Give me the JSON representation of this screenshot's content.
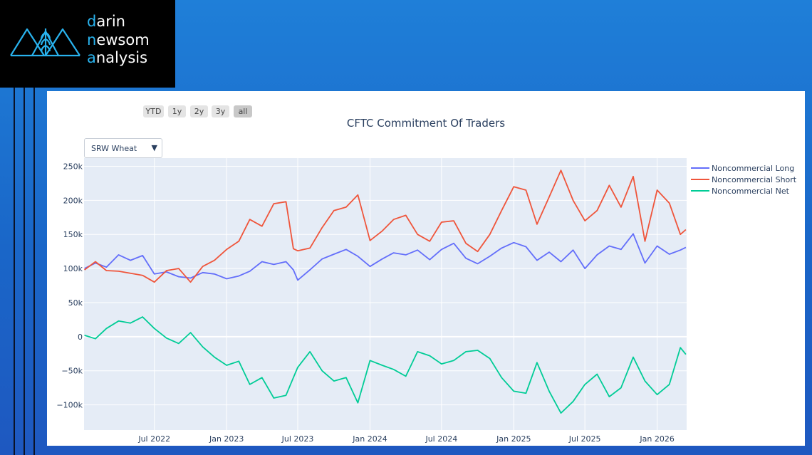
{
  "logo": {
    "lines": [
      {
        "first": "d",
        "rest": "arin"
      },
      {
        "first": "n",
        "rest": "ewsom"
      },
      {
        "first": "a",
        "rest": "nalysis"
      }
    ],
    "brand_color": "#29b3ee"
  },
  "range_selector": [
    "YTD",
    "1y",
    "2y",
    "3y",
    "all"
  ],
  "range_selector_active": "all",
  "dropdown": {
    "selected": "SRW Wheat",
    "caret": "▼"
  },
  "chart_data": {
    "type": "line",
    "title": "CFTC Commitment Of Traders",
    "x_range": [
      "2022-01-03",
      "2026-03-17"
    ],
    "ylim": [
      -137000,
      262000
    ],
    "y_ticks": [
      {
        "value": 250000,
        "label": "250k"
      },
      {
        "value": 200000,
        "label": "200k"
      },
      {
        "value": 150000,
        "label": "150k"
      },
      {
        "value": 100000,
        "label": "100k"
      },
      {
        "value": 50000,
        "label": "50k"
      },
      {
        "value": 0,
        "label": "0"
      },
      {
        "value": -50000,
        "label": "−50k"
      },
      {
        "value": -100000,
        "label": "−100k"
      }
    ],
    "x_ticks": [
      {
        "date": "2022-07-01",
        "label": "Jul 2022"
      },
      {
        "date": "2023-01-01",
        "label": "Jan 2023"
      },
      {
        "date": "2023-07-01",
        "label": "Jul 2023"
      },
      {
        "date": "2024-01-01",
        "label": "Jan 2024"
      },
      {
        "date": "2024-07-01",
        "label": "Jul 2024"
      },
      {
        "date": "2025-01-01",
        "label": "Jan 2025"
      },
      {
        "date": "2025-07-01",
        "label": "Jul 2025"
      },
      {
        "date": "2026-01-01",
        "label": "Jan 2026"
      }
    ],
    "grid": true,
    "plot_background": "#e5ecf6",
    "legend_position": "right",
    "series": [
      {
        "name": "Noncommercial Long",
        "color": "#636efa",
        "points": [
          [
            "2022-01-04",
            100000
          ],
          [
            "2022-02-01",
            108000
          ],
          [
            "2022-03-01",
            102000
          ],
          [
            "2022-04-01",
            120000
          ],
          [
            "2022-05-01",
            112000
          ],
          [
            "2022-06-01",
            119000
          ],
          [
            "2022-07-01",
            92000
          ],
          [
            "2022-08-01",
            95000
          ],
          [
            "2022-09-01",
            88000
          ],
          [
            "2022-10-01",
            86000
          ],
          [
            "2022-11-01",
            94000
          ],
          [
            "2022-12-01",
            92000
          ],
          [
            "2023-01-01",
            85000
          ],
          [
            "2023-02-01",
            89000
          ],
          [
            "2023-03-01",
            96000
          ],
          [
            "2023-04-01",
            110000
          ],
          [
            "2023-05-01",
            106000
          ],
          [
            "2023-06-01",
            110000
          ],
          [
            "2023-06-20",
            98000
          ],
          [
            "2023-07-01",
            83000
          ],
          [
            "2023-08-01",
            98000
          ],
          [
            "2023-09-01",
            114000
          ],
          [
            "2023-10-01",
            121000
          ],
          [
            "2023-11-01",
            128000
          ],
          [
            "2023-12-01",
            118000
          ],
          [
            "2024-01-01",
            103000
          ],
          [
            "2024-02-01",
            114000
          ],
          [
            "2024-03-01",
            123000
          ],
          [
            "2024-04-01",
            120000
          ],
          [
            "2024-05-01",
            127000
          ],
          [
            "2024-06-01",
            113000
          ],
          [
            "2024-07-01",
            128000
          ],
          [
            "2024-08-01",
            137000
          ],
          [
            "2024-09-01",
            115000
          ],
          [
            "2024-10-01",
            107000
          ],
          [
            "2024-11-01",
            118000
          ],
          [
            "2024-12-01",
            130000
          ],
          [
            "2025-01-01",
            138000
          ],
          [
            "2025-02-01",
            132000
          ],
          [
            "2025-03-01",
            112000
          ],
          [
            "2025-04-01",
            124000
          ],
          [
            "2025-05-01",
            110000
          ],
          [
            "2025-06-01",
            127000
          ],
          [
            "2025-07-01",
            100000
          ],
          [
            "2025-08-01",
            120000
          ],
          [
            "2025-09-01",
            133000
          ],
          [
            "2025-10-01",
            128000
          ],
          [
            "2025-11-01",
            151000
          ],
          [
            "2025-12-01",
            108000
          ],
          [
            "2026-01-01",
            133000
          ],
          [
            "2026-02-01",
            121000
          ],
          [
            "2026-03-01",
            127000
          ],
          [
            "2026-03-15",
            131000
          ]
        ]
      },
      {
        "name": "Noncommercial Short",
        "color": "#ef553b",
        "points": [
          [
            "2022-01-04",
            98000
          ],
          [
            "2022-02-01",
            110000
          ],
          [
            "2022-03-01",
            97000
          ],
          [
            "2022-04-01",
            96000
          ],
          [
            "2022-05-01",
            93000
          ],
          [
            "2022-06-01",
            90000
          ],
          [
            "2022-07-01",
            80000
          ],
          [
            "2022-08-01",
            97000
          ],
          [
            "2022-09-01",
            100000
          ],
          [
            "2022-10-01",
            80000
          ],
          [
            "2022-11-01",
            103000
          ],
          [
            "2022-12-01",
            112000
          ],
          [
            "2023-01-01",
            128000
          ],
          [
            "2023-02-01",
            140000
          ],
          [
            "2023-03-01",
            172000
          ],
          [
            "2023-04-01",
            162000
          ],
          [
            "2023-05-01",
            195000
          ],
          [
            "2023-06-01",
            198000
          ],
          [
            "2023-06-20",
            129000
          ],
          [
            "2023-07-01",
            126000
          ],
          [
            "2023-08-01",
            130000
          ],
          [
            "2023-09-01",
            160000
          ],
          [
            "2023-10-01",
            185000
          ],
          [
            "2023-11-01",
            190000
          ],
          [
            "2023-12-01",
            208000
          ],
          [
            "2024-01-01",
            141000
          ],
          [
            "2024-02-01",
            155000
          ],
          [
            "2024-03-01",
            172000
          ],
          [
            "2024-04-01",
            178000
          ],
          [
            "2024-05-01",
            150000
          ],
          [
            "2024-06-01",
            140000
          ],
          [
            "2024-07-01",
            168000
          ],
          [
            "2024-08-01",
            170000
          ],
          [
            "2024-09-01",
            137000
          ],
          [
            "2024-10-01",
            125000
          ],
          [
            "2024-11-01",
            150000
          ],
          [
            "2024-12-01",
            185000
          ],
          [
            "2025-01-01",
            220000
          ],
          [
            "2025-02-01",
            215000
          ],
          [
            "2025-03-01",
            165000
          ],
          [
            "2025-04-01",
            205000
          ],
          [
            "2025-05-01",
            244000
          ],
          [
            "2025-06-01",
            200000
          ],
          [
            "2025-07-01",
            170000
          ],
          [
            "2025-08-01",
            185000
          ],
          [
            "2025-09-01",
            222000
          ],
          [
            "2025-10-01",
            190000
          ],
          [
            "2025-11-01",
            235000
          ],
          [
            "2025-12-01",
            140000
          ],
          [
            "2026-01-01",
            215000
          ],
          [
            "2026-02-01",
            196000
          ],
          [
            "2026-03-01",
            150000
          ],
          [
            "2026-03-15",
            157000
          ]
        ]
      },
      {
        "name": "Noncommercial Net",
        "color": "#00cc96",
        "points": [
          [
            "2022-01-04",
            2000
          ],
          [
            "2022-02-01",
            -3000
          ],
          [
            "2022-03-01",
            12000
          ],
          [
            "2022-04-01",
            23000
          ],
          [
            "2022-05-01",
            20000
          ],
          [
            "2022-06-01",
            29000
          ],
          [
            "2022-07-01",
            12000
          ],
          [
            "2022-08-01",
            -2000
          ],
          [
            "2022-09-01",
            -10000
          ],
          [
            "2022-10-01",
            6000
          ],
          [
            "2022-11-01",
            -15000
          ],
          [
            "2022-12-01",
            -30000
          ],
          [
            "2023-01-01",
            -42000
          ],
          [
            "2023-02-01",
            -36000
          ],
          [
            "2023-03-01",
            -70000
          ],
          [
            "2023-04-01",
            -60000
          ],
          [
            "2023-05-01",
            -90000
          ],
          [
            "2023-06-01",
            -86000
          ],
          [
            "2023-06-20",
            -60000
          ],
          [
            "2023-07-01",
            -45000
          ],
          [
            "2023-08-01",
            -22000
          ],
          [
            "2023-09-01",
            -50000
          ],
          [
            "2023-10-01",
            -65000
          ],
          [
            "2023-11-01",
            -60000
          ],
          [
            "2023-12-01",
            -97000
          ],
          [
            "2024-01-01",
            -35000
          ],
          [
            "2024-02-01",
            -42000
          ],
          [
            "2024-03-01",
            -48000
          ],
          [
            "2024-04-01",
            -58000
          ],
          [
            "2024-05-01",
            -22000
          ],
          [
            "2024-06-01",
            -28000
          ],
          [
            "2024-07-01",
            -40000
          ],
          [
            "2024-08-01",
            -35000
          ],
          [
            "2024-09-01",
            -22000
          ],
          [
            "2024-10-01",
            -20000
          ],
          [
            "2024-11-01",
            -32000
          ],
          [
            "2024-12-01",
            -60000
          ],
          [
            "2025-01-01",
            -80000
          ],
          [
            "2025-02-01",
            -83000
          ],
          [
            "2025-03-01",
            -38000
          ],
          [
            "2025-04-01",
            -80000
          ],
          [
            "2025-05-01",
            -112000
          ],
          [
            "2025-06-01",
            -95000
          ],
          [
            "2025-07-01",
            -70000
          ],
          [
            "2025-08-01",
            -55000
          ],
          [
            "2025-09-01",
            -88000
          ],
          [
            "2025-10-01",
            -75000
          ],
          [
            "2025-11-01",
            -30000
          ],
          [
            "2025-12-01",
            -65000
          ],
          [
            "2026-01-01",
            -85000
          ],
          [
            "2026-02-01",
            -70000
          ],
          [
            "2026-03-01",
            -16000
          ],
          [
            "2026-03-15",
            -26000
          ]
        ]
      }
    ]
  }
}
